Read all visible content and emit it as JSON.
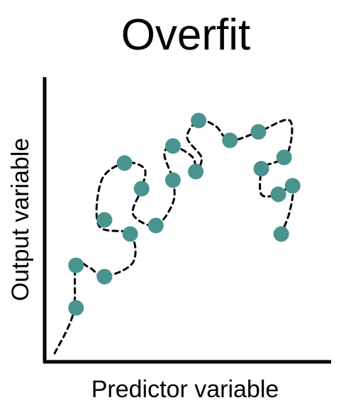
{
  "chart_data": {
    "type": "scatter",
    "title": "Overfit",
    "xlabel": "Predictor variable",
    "ylabel": "Output variable",
    "xlim": [
      0,
      10
    ],
    "ylim": [
      0,
      10
    ],
    "grid": false,
    "legend": "none",
    "colors": {
      "points": "#4a9490",
      "fit_line": "#000000",
      "axes": "#000000"
    },
    "series": [
      {
        "values_xy": [
          [
            1.1,
            1.9
          ],
          [
            1.1,
            3.4
          ],
          [
            2.1,
            3.0
          ],
          [
            2.1,
            5.0
          ],
          [
            2.8,
            7.0
          ],
          [
            3.0,
            4.5
          ],
          [
            3.4,
            6.1
          ],
          [
            3.9,
            4.8
          ],
          [
            4.5,
            6.4
          ],
          [
            4.5,
            7.6
          ],
          [
            5.3,
            6.7
          ],
          [
            5.4,
            8.5
          ],
          [
            6.5,
            7.8
          ],
          [
            7.5,
            8.1
          ],
          [
            7.6,
            6.8
          ],
          [
            8.4,
            7.2
          ],
          [
            8.2,
            5.9
          ],
          [
            8.7,
            6.2
          ],
          [
            8.3,
            4.5
          ]
        ]
      }
    ],
    "fit_line": {
      "style": "dashed",
      "points": [
        [
          0.35,
          0.3
        ],
        [
          1.0,
          1.7
        ],
        [
          1.1,
          3.4
        ],
        [
          1.6,
          3.3
        ],
        [
          2.1,
          3.0
        ],
        [
          3.1,
          3.5
        ],
        [
          3.0,
          4.5
        ],
        [
          1.9,
          4.8
        ],
        [
          2.0,
          6.4
        ],
        [
          2.8,
          7.0
        ],
        [
          3.5,
          6.8
        ],
        [
          3.4,
          6.1
        ],
        [
          3.1,
          5.2
        ],
        [
          3.9,
          4.8
        ],
        [
          4.5,
          5.6
        ],
        [
          4.5,
          6.4
        ],
        [
          4.2,
          7.3
        ],
        [
          4.5,
          7.6
        ],
        [
          5.2,
          7.2
        ],
        [
          5.3,
          6.7
        ],
        [
          5.5,
          7.2
        ],
        [
          5.0,
          7.9
        ],
        [
          5.4,
          8.5
        ],
        [
          6.0,
          8.3
        ],
        [
          6.5,
          7.8
        ],
        [
          7.5,
          8.1
        ],
        [
          8.6,
          8.5
        ],
        [
          8.5,
          7.3
        ],
        [
          7.7,
          6.9
        ],
        [
          7.6,
          6.8
        ],
        [
          7.6,
          5.9
        ],
        [
          8.2,
          5.9
        ],
        [
          8.7,
          6.2
        ],
        [
          8.6,
          5.3
        ],
        [
          8.3,
          4.5
        ]
      ]
    }
  }
}
